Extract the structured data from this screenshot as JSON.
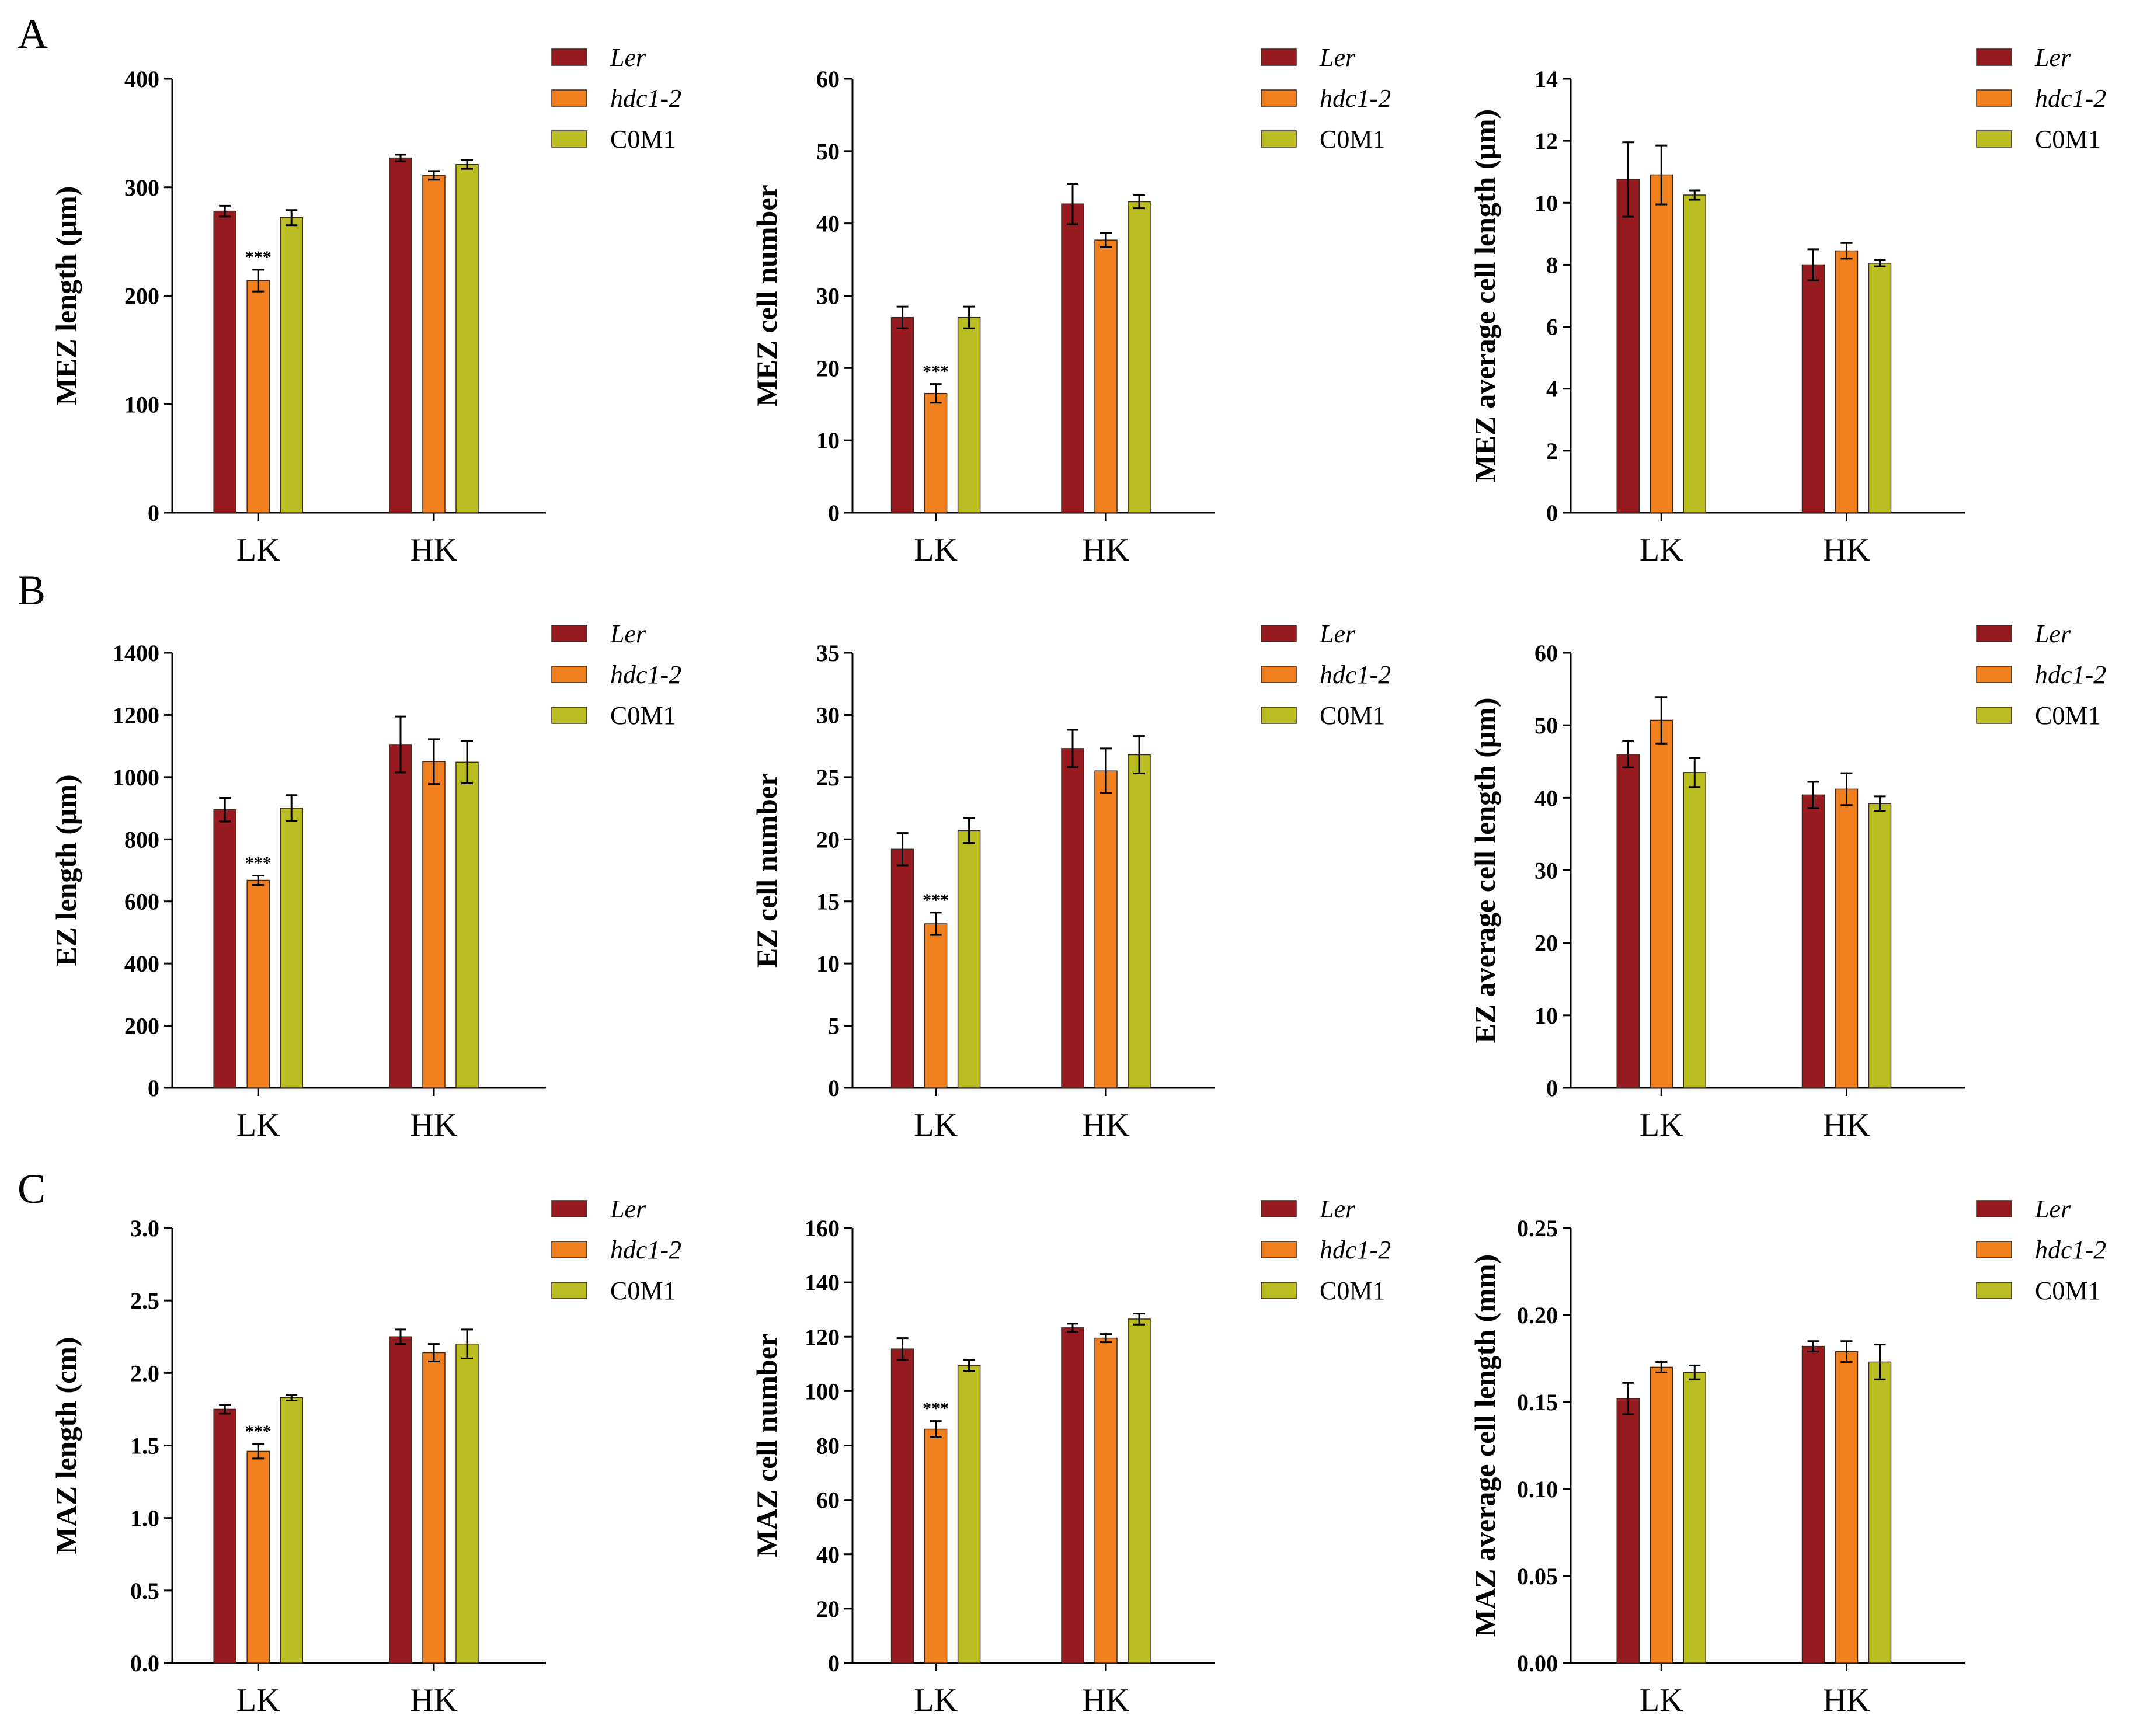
{
  "colors": {
    "ler": "#961b20",
    "hdc1": "#f07f1f",
    "c0m1": "#b9bd22"
  },
  "panel_letters": [
    "A",
    "B",
    "C"
  ],
  "chart_data": [
    {
      "panel": "A",
      "type": "bar",
      "title": "",
      "xlabel": "",
      "ylabel": "MEZ length (μm)",
      "categories": [
        "LK",
        "HK"
      ],
      "ylim": [
        0,
        400
      ],
      "yticks": [
        "0",
        "100",
        "200",
        "300",
        "400"
      ],
      "legend": [
        "Ler",
        "hdc1-2",
        "C0M1"
      ],
      "series": [
        {
          "name": "Ler",
          "values": [
            278,
            327
          ],
          "errors": [
            5,
            3
          ]
        },
        {
          "name": "hdc1-2",
          "values": [
            214,
            311
          ],
          "errors": [
            10,
            4
          ]
        },
        {
          "name": "C0M1",
          "values": [
            272,
            321
          ],
          "errors": [
            7,
            4
          ]
        }
      ],
      "annotations": [
        {
          "text": "***",
          "category": "LK",
          "series": "hdc1-2"
        }
      ]
    },
    {
      "panel": "A",
      "type": "bar",
      "title": "",
      "xlabel": "",
      "ylabel": "MEZ cell number",
      "categories": [
        "LK",
        "HK"
      ],
      "ylim": [
        0,
        60
      ],
      "yticks": [
        "0",
        "10",
        "20",
        "30",
        "40",
        "50",
        "60"
      ],
      "legend": [
        "Ler",
        "hdc1-2",
        "C0M1"
      ],
      "series": [
        {
          "name": "Ler",
          "values": [
            27,
            42.7
          ],
          "errors": [
            1.5,
            2.8
          ]
        },
        {
          "name": "hdc1-2",
          "values": [
            16.5,
            37.7
          ],
          "errors": [
            1.3,
            1.0
          ]
        },
        {
          "name": "C0M1",
          "values": [
            27,
            43
          ],
          "errors": [
            1.5,
            0.9
          ]
        }
      ],
      "annotations": [
        {
          "text": "***",
          "category": "LK",
          "series": "hdc1-2"
        }
      ]
    },
    {
      "panel": "A",
      "type": "bar",
      "title": "",
      "xlabel": "",
      "ylabel": "MEZ  average cell length (μm)",
      "categories": [
        "LK",
        "HK"
      ],
      "ylim": [
        0,
        14
      ],
      "yticks": [
        "0",
        "2",
        "4",
        "6",
        "8",
        "10",
        "12",
        "14"
      ],
      "legend": [
        "Ler",
        "hdc1-2",
        "C0M1"
      ],
      "series": [
        {
          "name": "Ler",
          "values": [
            10.75,
            8.0
          ],
          "errors": [
            1.2,
            0.5
          ]
        },
        {
          "name": "hdc1-2",
          "values": [
            10.9,
            8.45
          ],
          "errors": [
            0.95,
            0.25
          ]
        },
        {
          "name": "C0M1",
          "values": [
            10.25,
            8.05
          ],
          "errors": [
            0.15,
            0.1
          ]
        }
      ],
      "annotations": []
    },
    {
      "panel": "B",
      "type": "bar",
      "title": "",
      "xlabel": "",
      "ylabel": "EZ length (μm)",
      "categories": [
        "LK",
        "HK"
      ],
      "ylim": [
        0,
        1400
      ],
      "yticks": [
        "0",
        "200",
        "400",
        "600",
        "800",
        "1000",
        "1200",
        "1400"
      ],
      "legend": [
        "Ler",
        "hdc1-2",
        "C0M1"
      ],
      "series": [
        {
          "name": "Ler",
          "values": [
            895,
            1105
          ],
          "errors": [
            38,
            90
          ]
        },
        {
          "name": "hdc1-2",
          "values": [
            668,
            1050
          ],
          "errors": [
            15,
            72
          ]
        },
        {
          "name": "C0M1",
          "values": [
            900,
            1048
          ],
          "errors": [
            42,
            68
          ]
        }
      ],
      "annotations": [
        {
          "text": "***",
          "category": "LK",
          "series": "hdc1-2"
        }
      ]
    },
    {
      "panel": "B",
      "type": "bar",
      "title": "",
      "xlabel": "",
      "ylabel": "EZ cell number",
      "categories": [
        "LK",
        "HK"
      ],
      "ylim": [
        0,
        35
      ],
      "yticks": [
        "0",
        "5",
        "10",
        "15",
        "20",
        "25",
        "30",
        "35"
      ],
      "legend": [
        "Ler",
        "hdc1-2",
        "C0M1"
      ],
      "series": [
        {
          "name": "Ler",
          "values": [
            19.2,
            27.3
          ],
          "errors": [
            1.3,
            1.5
          ]
        },
        {
          "name": "hdc1-2",
          "values": [
            13.2,
            25.5
          ],
          "errors": [
            0.9,
            1.8
          ]
        },
        {
          "name": "C0M1",
          "values": [
            20.7,
            26.8
          ],
          "errors": [
            1.0,
            1.5
          ]
        }
      ],
      "annotations": [
        {
          "text": "***",
          "category": "LK",
          "series": "hdc1-2"
        }
      ]
    },
    {
      "panel": "B",
      "type": "bar",
      "title": "",
      "xlabel": "",
      "ylabel": "EZ  average cell length (μm)",
      "categories": [
        "LK",
        "HK"
      ],
      "ylim": [
        0,
        60
      ],
      "yticks": [
        "0",
        "10",
        "20",
        "30",
        "40",
        "50",
        "60"
      ],
      "legend": [
        "Ler",
        "hdc1-2",
        "C0M1"
      ],
      "series": [
        {
          "name": "Ler",
          "values": [
            46,
            40.4
          ],
          "errors": [
            1.8,
            1.8
          ]
        },
        {
          "name": "hdc1-2",
          "values": [
            50.7,
            41.2
          ],
          "errors": [
            3.2,
            2.2
          ]
        },
        {
          "name": "C0M1",
          "values": [
            43.5,
            39.2
          ],
          "errors": [
            2.0,
            1.0
          ]
        }
      ],
      "annotations": []
    },
    {
      "panel": "C",
      "type": "bar",
      "title": "",
      "xlabel": "",
      "ylabel": "MAZ length (cm)",
      "categories": [
        "LK",
        "HK"
      ],
      "ylim": [
        0,
        3.0
      ],
      "yticks": [
        "0.0",
        "0.5",
        "1.0",
        "1.5",
        "2.0",
        "2.5",
        "3.0"
      ],
      "legend": [
        "Ler",
        "hdc1-2",
        "C0M1"
      ],
      "series": [
        {
          "name": "Ler",
          "values": [
            1.75,
            2.25
          ],
          "errors": [
            0.03,
            0.05
          ]
        },
        {
          "name": "hdc1-2",
          "values": [
            1.46,
            2.14
          ],
          "errors": [
            0.05,
            0.06
          ]
        },
        {
          "name": "C0M1",
          "values": [
            1.83,
            2.2
          ],
          "errors": [
            0.02,
            0.1
          ]
        }
      ],
      "annotations": [
        {
          "text": "***",
          "category": "LK",
          "series": "hdc1-2"
        }
      ]
    },
    {
      "panel": "C",
      "type": "bar",
      "title": "",
      "xlabel": "",
      "ylabel": "MAZ cell number",
      "categories": [
        "LK",
        "HK"
      ],
      "ylim": [
        0,
        160
      ],
      "yticks": [
        "0",
        "20",
        "40",
        "60",
        "80",
        "100",
        "120",
        "140",
        "160"
      ],
      "legend": [
        "Ler",
        "hdc1-2",
        "C0M1"
      ],
      "series": [
        {
          "name": "Ler",
          "values": [
            115.5,
            123.3
          ],
          "errors": [
            4.0,
            1.5
          ]
        },
        {
          "name": "hdc1-2",
          "values": [
            86,
            119.5
          ],
          "errors": [
            3.0,
            1.5
          ]
        },
        {
          "name": "C0M1",
          "values": [
            109.5,
            126.5
          ],
          "errors": [
            2.0,
            2.0
          ]
        }
      ],
      "annotations": [
        {
          "text": "***",
          "category": "LK",
          "series": "hdc1-2"
        }
      ]
    },
    {
      "panel": "C",
      "type": "bar",
      "title": "",
      "xlabel": "",
      "ylabel": "MAZ  average cell length (mm)",
      "categories": [
        "LK",
        "HK"
      ],
      "ylim": [
        0,
        0.25
      ],
      "yticks": [
        "0.00",
        "0.05",
        "0.10",
        "0.15",
        "0.20",
        "0.25"
      ],
      "legend": [
        "Ler",
        "hdc1-2",
        "C0M1"
      ],
      "series": [
        {
          "name": "Ler",
          "values": [
            0.152,
            0.182
          ],
          "errors": [
            0.009,
            0.003
          ]
        },
        {
          "name": "hdc1-2",
          "values": [
            0.17,
            0.179
          ],
          "errors": [
            0.003,
            0.006
          ]
        },
        {
          "name": "C0M1",
          "values": [
            0.167,
            0.173
          ],
          "errors": [
            0.004,
            0.01
          ]
        }
      ],
      "annotations": []
    }
  ]
}
